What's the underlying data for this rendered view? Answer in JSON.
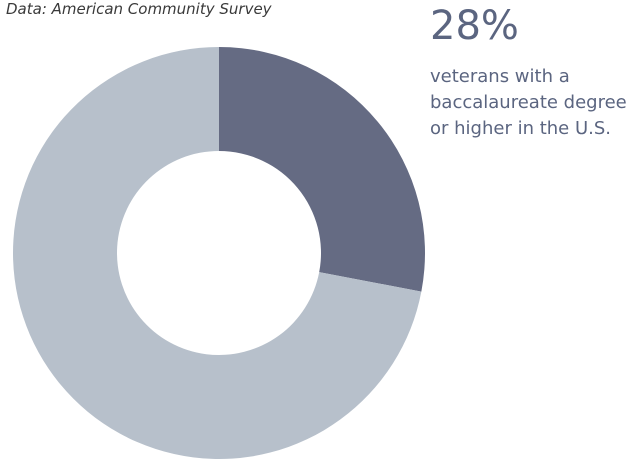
{
  "source_note": "Data: American Community Survey",
  "stat": {
    "value_text": "28%",
    "description": "veterans with a baccalaureate degree or higher in the U.S."
  },
  "chart_data": {
    "type": "pie",
    "donut": true,
    "slices": [
      {
        "value": 28,
        "color": "#656b83"
      },
      {
        "value": 72,
        "color": "#b7c0cb"
      }
    ]
  }
}
